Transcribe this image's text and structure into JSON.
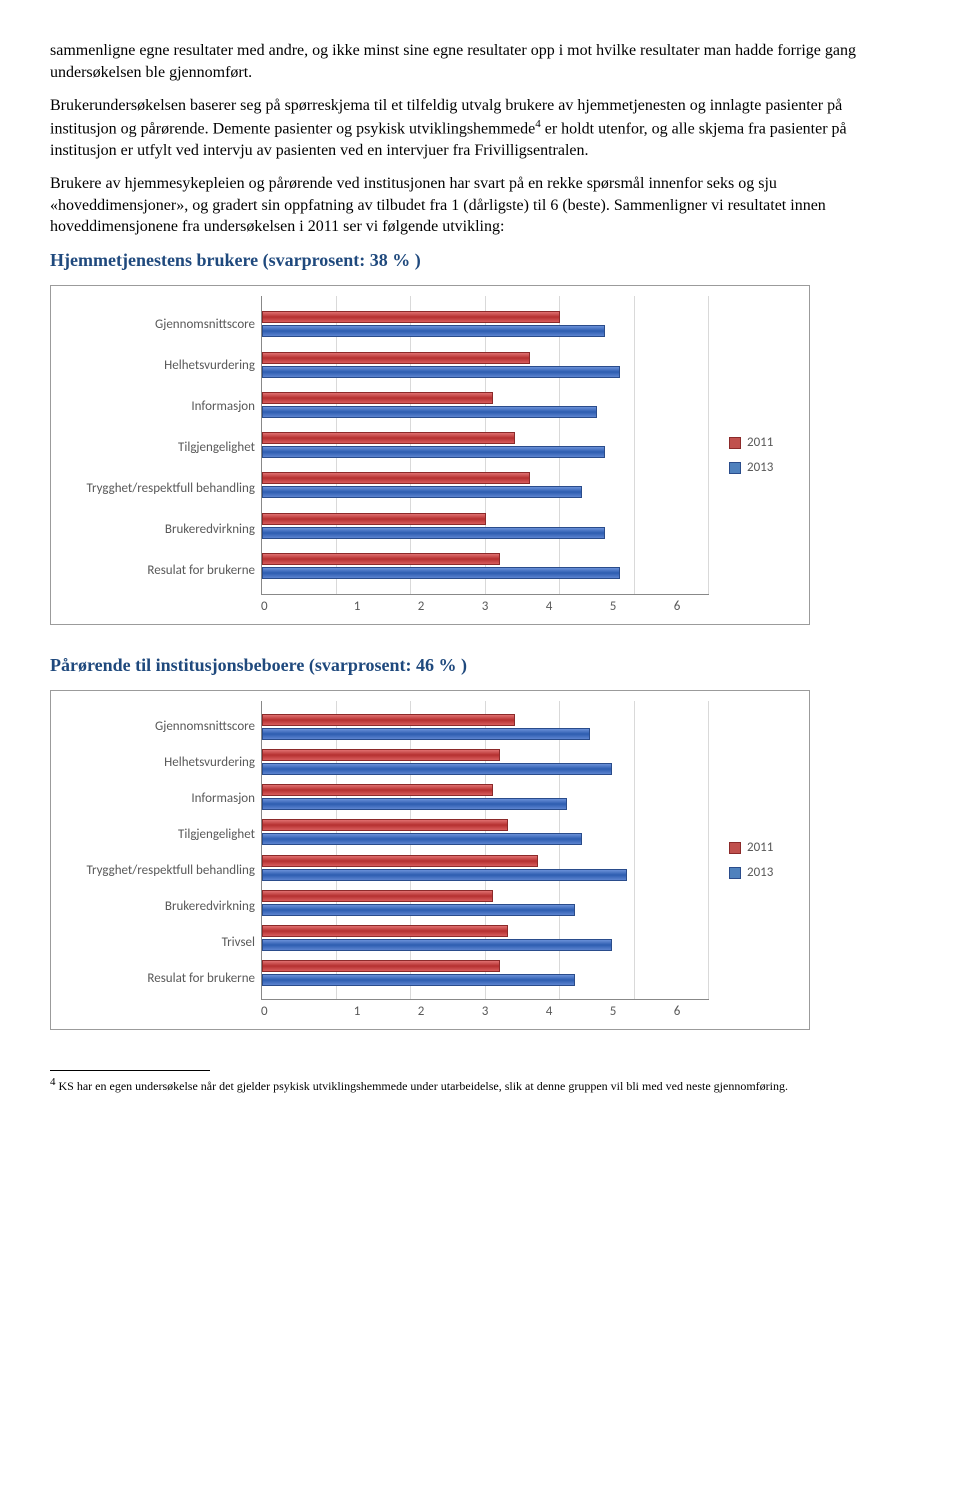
{
  "paragraphs": {
    "p1": "sammenligne egne resultater med andre, og ikke minst sine egne resultater opp i mot hvilke resultater man hadde forrige gang undersøkelsen ble gjennomført.",
    "p2a": "Brukerundersøkelsen baserer seg på spørreskjema til et tilfeldig utvalg brukere av hjemmetjenesten og innlagte pasienter på institusjon og pårørende. Demente pasienter og psykisk utviklingshemmede",
    "p2b": " er holdt utenfor, og alle skjema fra pasienter på institusjon er utfylt ved intervju av pasienten ved en intervjuer fra Frivilligsentralen.",
    "p3": "Brukere av hjemmesykepleien og pårørende ved institusjonen har svart på en rekke spørsmål innenfor seks og sju «hoveddimensjoner», og gradert sin oppfatning av tilbudet fra 1 (dårligste) til 6 (beste). Sammenligner vi resultatet innen hoveddimensjonene fra undersøkelsen i 2011 ser vi følgende utvikling:",
    "sup4": "4"
  },
  "heading1": "Hjemmetjenestens brukere (svarprosent: 38 %  )",
  "heading2": "Pårørende til institusjonsbeboere (svarprosent: 46 %  )",
  "legend": {
    "s2011": "2011",
    "s2013": "2013"
  },
  "colors": {
    "series2011": "#c0504d",
    "series2013": "#4f81bd",
    "grid": "#d9d9d9",
    "axis": "#888888",
    "text": "#595959",
    "heading": "#1f497d"
  },
  "chart1": {
    "type": "bar-horizontal-grouped",
    "xlim": [
      0,
      6
    ],
    "xtick_step": 1,
    "xticks": [
      "0",
      "1",
      "2",
      "3",
      "4",
      "5",
      "6"
    ],
    "categories": [
      "Gjennomsnittscore",
      "Helhetsvurdering",
      "Informasjon",
      "Tilgjengelighet",
      "Trygghet/respektfull behandling",
      "Brukeredvirkning",
      "Resulat for brukerne"
    ],
    "values2011": [
      4.0,
      3.6,
      3.1,
      3.4,
      3.6,
      3.0,
      3.2
    ],
    "values2013": [
      4.6,
      4.8,
      4.5,
      4.6,
      4.3,
      4.6,
      4.8
    ]
  },
  "chart2": {
    "type": "bar-horizontal-grouped",
    "xlim": [
      0,
      6
    ],
    "xtick_step": 1,
    "xticks": [
      "0",
      "1",
      "2",
      "3",
      "4",
      "5",
      "6"
    ],
    "categories": [
      "Gjennomsnittscore",
      "Helhetsvurdering",
      "Informasjon",
      "Tilgjengelighet",
      "Trygghet/respektfull behandling",
      "Brukeredvirkning",
      "Trivsel",
      "Resulat for brukerne"
    ],
    "values2011": [
      3.4,
      3.2,
      3.1,
      3.3,
      3.7,
      3.1,
      3.3,
      3.2
    ],
    "values2013": [
      4.4,
      4.7,
      4.1,
      4.3,
      4.9,
      4.2,
      4.7,
      4.2
    ]
  },
  "footnote": {
    "num": "4",
    "text": " KS har en egen undersøkelse når det gjelder psykisk utviklingshemmede under utarbeidelse, slik at denne gruppen vil bli med ved neste gjennomføring."
  }
}
